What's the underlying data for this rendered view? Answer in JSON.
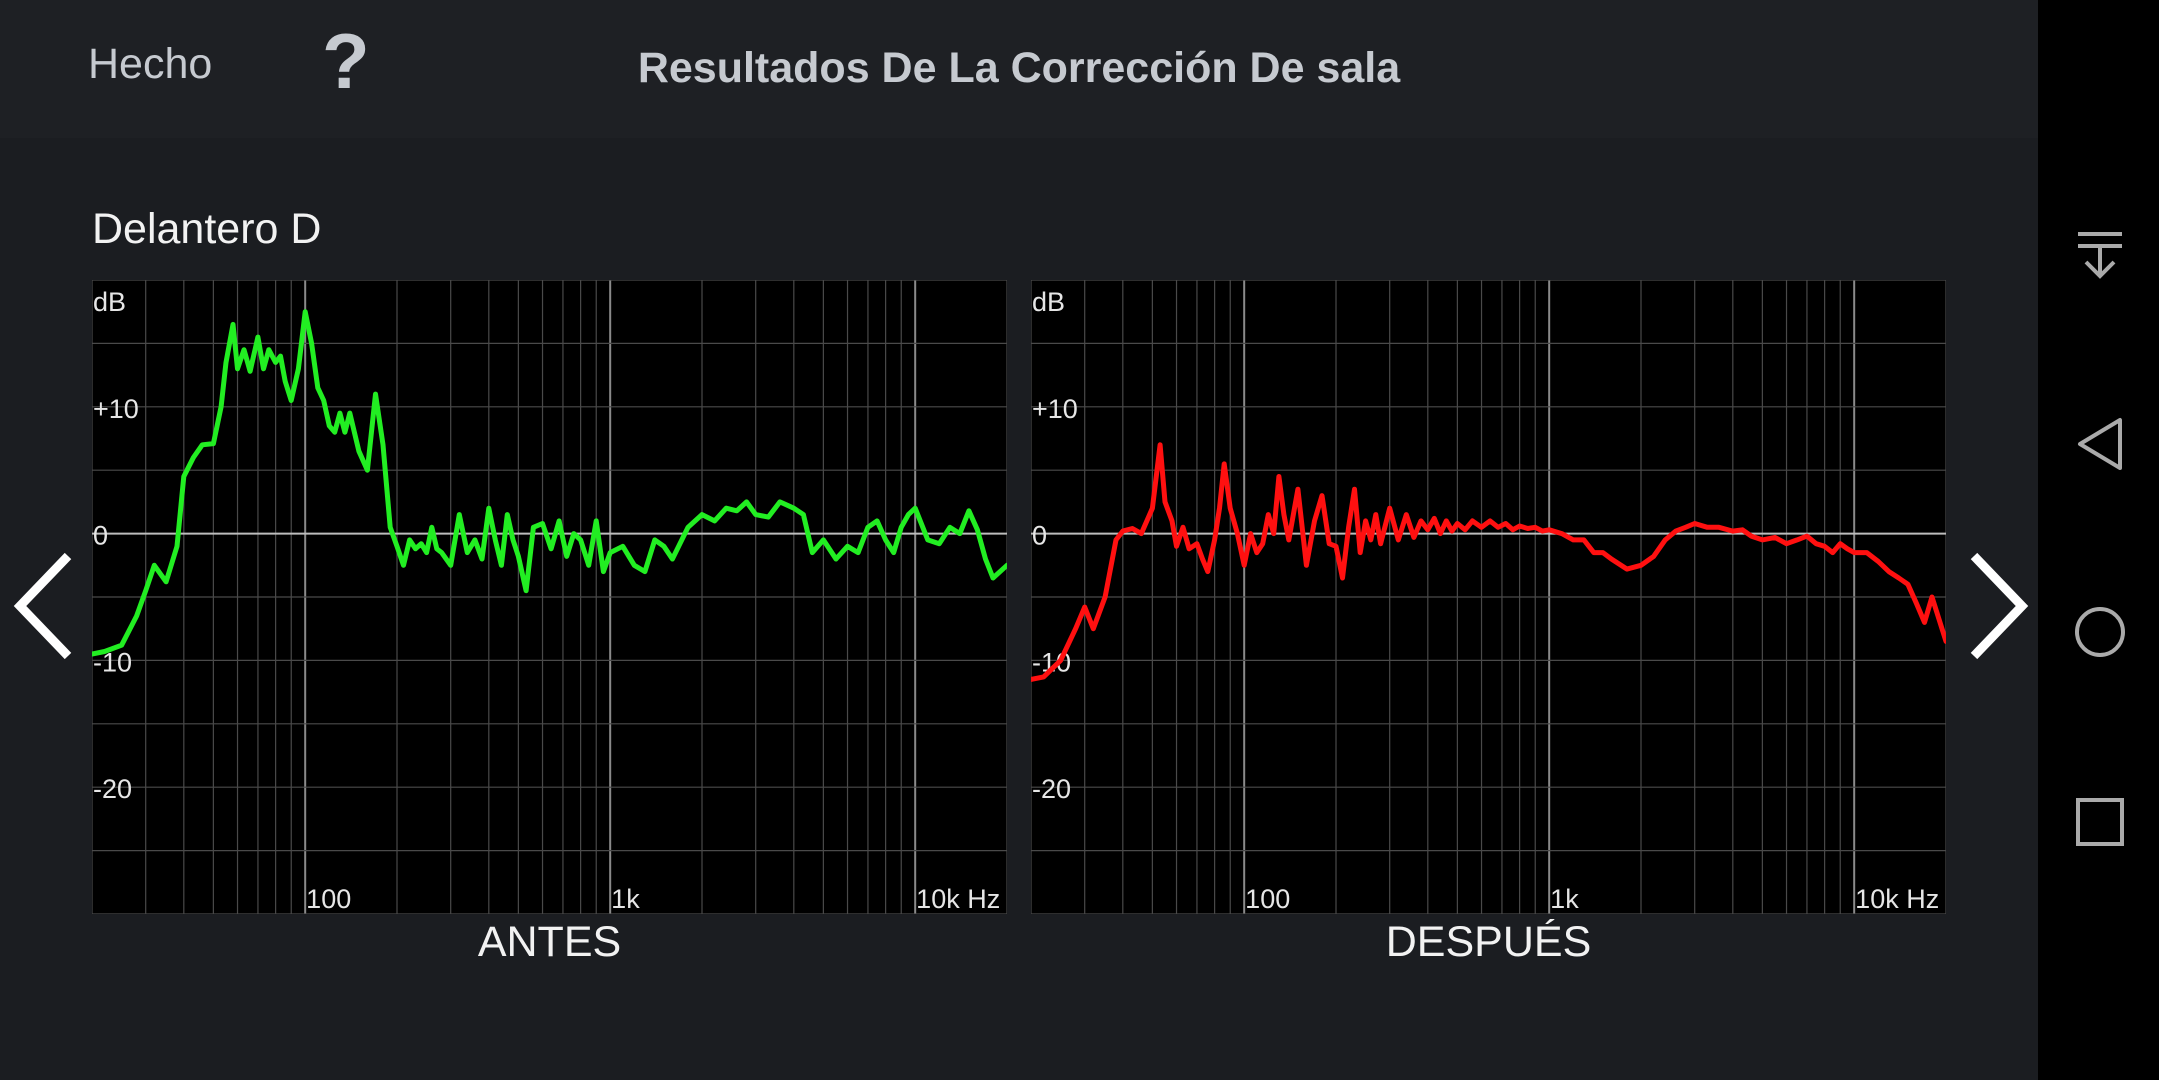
{
  "header": {
    "done_label": "Hecho",
    "help_label": "?",
    "title": "Resultados De La Corrección De sala"
  },
  "speaker_name": "Delantero D",
  "graphs": {
    "y_unit_label": "dB",
    "y_tick_labels": [
      "+10",
      "0",
      "-10",
      "-20"
    ],
    "x_tick_labels": [
      "100",
      "1k",
      "10k Hz"
    ],
    "before_label": "ANTES",
    "after_label": "DESPUÉS",
    "before_color": "#22ee22",
    "after_color": "#ff1010",
    "grid_color": "#4a4a4a",
    "zero_line_color": "#bdbdbd"
  },
  "chart_data": [
    {
      "type": "line",
      "title": "ANTES",
      "ylabel": "dB",
      "x_scale": "log",
      "xlim": [
        20,
        20000
      ],
      "ylim": [
        -30,
        20
      ],
      "series": [
        {
          "x": [
            20,
            22,
            25,
            28,
            30,
            32,
            35,
            38,
            40,
            43,
            46,
            50,
            53,
            55,
            58,
            60,
            63,
            66,
            70,
            73,
            76,
            80,
            83,
            86,
            90,
            95,
            100,
            105,
            110,
            115,
            120,
            125,
            130,
            135,
            140,
            150,
            160,
            170,
            180,
            190,
            200,
            210,
            220,
            230,
            240,
            250,
            260,
            270,
            280,
            300,
            320,
            340,
            360,
            380,
            400,
            420,
            440,
            460,
            480,
            500,
            530,
            560,
            600,
            640,
            680,
            720,
            760,
            800,
            850,
            900,
            950,
            1000,
            1100,
            1200,
            1300,
            1400,
            1500,
            1600,
            1800,
            2000,
            2200,
            2400,
            2600,
            2800,
            3000,
            3300,
            3600,
            4000,
            4300,
            4600,
            5000,
            5500,
            6000,
            6500,
            7000,
            7500,
            8000,
            8500,
            9000,
            9500,
            10000,
            11000,
            12000,
            13000,
            14000,
            15000,
            16000,
            17000,
            18000,
            20000
          ],
          "y": [
            -9.5,
            -9.3,
            -8.8,
            -6.5,
            -4.5,
            -2.5,
            -3.8,
            -1,
            4.5,
            6,
            7,
            7.1,
            10,
            13.5,
            16.5,
            13,
            14.5,
            12.8,
            15.5,
            13,
            14.5,
            13.5,
            14,
            12,
            10.5,
            13,
            17.5,
            15,
            11.5,
            10.5,
            8.5,
            8,
            9.5,
            8,
            9.5,
            6.5,
            5,
            11,
            7,
            0.5,
            -1,
            -2.5,
            -0.5,
            -1.2,
            -0.8,
            -1.5,
            0.5,
            -1.2,
            -1.5,
            -2.5,
            1.5,
            -1.5,
            -0.5,
            -2,
            2,
            -0.5,
            -2.5,
            1.5,
            -0.5,
            -1.8,
            -4.5,
            0.5,
            0.8,
            -1.2,
            1,
            -1.8,
            0,
            -0.5,
            -2.5,
            1,
            -3,
            -1.5,
            -1,
            -2.5,
            -3,
            -0.5,
            -1,
            -2,
            0.5,
            1.5,
            1,
            2,
            1.8,
            2.5,
            1.5,
            1.3,
            2.5,
            2,
            1.5,
            -1.5,
            -0.5,
            -2,
            -1,
            -1.5,
            0.5,
            1,
            -0.5,
            -1.5,
            0.5,
            1.5,
            2,
            -0.5,
            -0.8,
            0.5,
            0,
            1.8,
            0.3,
            -2,
            -3.5,
            -2.5
          ]
        }
      ]
    },
    {
      "type": "line",
      "title": "DESPUÉS",
      "ylabel": "dB",
      "x_scale": "log",
      "xlim": [
        20,
        20000
      ],
      "ylim": [
        -30,
        20
      ],
      "series": [
        {
          "x": [
            20,
            22,
            25,
            28,
            30,
            32,
            35,
            38,
            40,
            43,
            46,
            50,
            53,
            55,
            58,
            60,
            63,
            66,
            70,
            73,
            76,
            80,
            83,
            86,
            90,
            95,
            100,
            105,
            110,
            115,
            120,
            125,
            130,
            135,
            140,
            150,
            160,
            170,
            180,
            190,
            200,
            210,
            220,
            230,
            240,
            250,
            260,
            270,
            280,
            300,
            320,
            340,
            360,
            380,
            400,
            420,
            440,
            460,
            480,
            500,
            530,
            560,
            600,
            640,
            680,
            720,
            760,
            800,
            850,
            900,
            950,
            1000,
            1100,
            1200,
            1300,
            1400,
            1500,
            1600,
            1800,
            2000,
            2200,
            2400,
            2600,
            2800,
            3000,
            3300,
            3600,
            4000,
            4300,
            4600,
            5000,
            5500,
            6000,
            6500,
            7000,
            7500,
            8000,
            8500,
            9000,
            9500,
            10000,
            11000,
            12000,
            13000,
            14000,
            15000,
            16000,
            17000,
            18000,
            20000
          ],
          "y": [
            -11.5,
            -11.3,
            -10,
            -7.5,
            -5.8,
            -7.5,
            -5,
            -0.5,
            0.2,
            0.4,
            0,
            2,
            7,
            2.5,
            1,
            -1,
            0.5,
            -1.2,
            -0.8,
            -2,
            -3,
            -0.5,
            2,
            5.5,
            2,
            0,
            -2.5,
            0,
            -1.5,
            -0.8,
            1.5,
            0,
            4.5,
            1.5,
            -0.5,
            3.5,
            -2.5,
            1,
            3,
            -0.8,
            -1,
            -3.5,
            0.5,
            3.5,
            -1.5,
            1,
            -0.5,
            1.5,
            -0.8,
            2,
            -0.5,
            1.5,
            -0.3,
            1,
            0.3,
            1.2,
            0,
            1,
            0.2,
            0.8,
            0.3,
            1,
            0.5,
            1,
            0.5,
            0.8,
            0.3,
            0.6,
            0.4,
            0.5,
            0.2,
            0.3,
            0,
            -0.5,
            -0.5,
            -1.5,
            -1.5,
            -2,
            -2.8,
            -2.5,
            -1.8,
            -0.5,
            0.2,
            0.5,
            0.8,
            0.5,
            0.5,
            0.2,
            0.3,
            -0.2,
            -0.5,
            -0.3,
            -0.8,
            -0.5,
            -0.2,
            -0.8,
            -1,
            -1.5,
            -0.8,
            -1.2,
            -1.5,
            -1.5,
            -2.2,
            -3,
            -3.5,
            -4,
            -5.5,
            -7,
            -5,
            -8.5
          ]
        }
      ]
    }
  ],
  "system_nav": {
    "icons": [
      "notification-pull-icon",
      "back-triangle-icon",
      "home-circle-icon",
      "recents-square-icon"
    ]
  }
}
